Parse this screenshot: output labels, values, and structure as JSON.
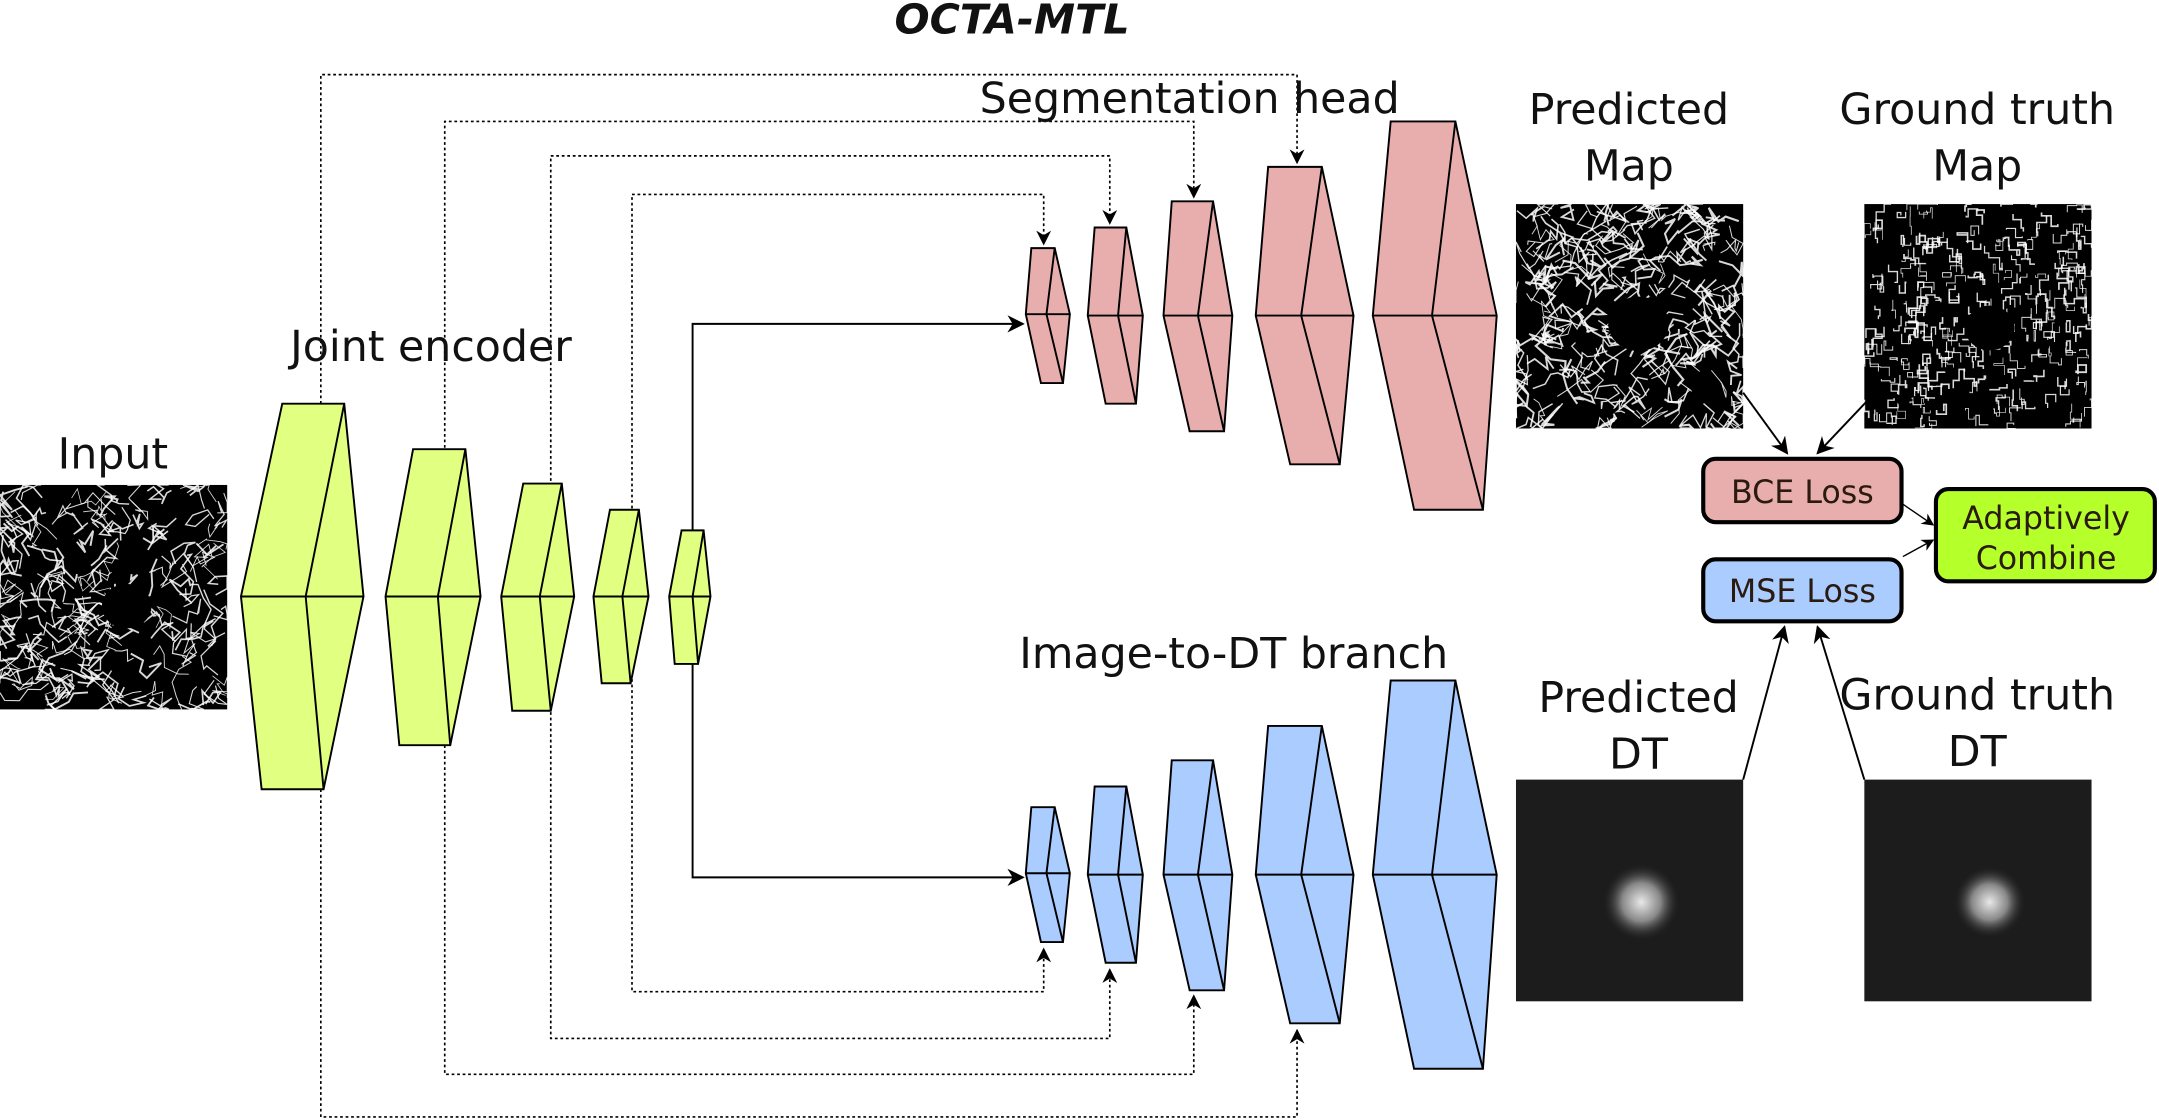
{
  "title": "OCTA-MTL",
  "labels": {
    "input": "Input",
    "joint_encoder": "Joint encoder",
    "segmentation_head": "Segmentation head",
    "dt_branch": "Image-to-DT branch",
    "predicted_map": [
      "Predicted",
      "Map"
    ],
    "ground_truth_map": [
      "Ground truth",
      "Map"
    ],
    "predicted_dt": [
      "Predicted",
      "DT"
    ],
    "ground_truth_dt": [
      "Ground truth",
      "DT"
    ]
  },
  "boxes": {
    "bce": "BCE Loss",
    "mse": "MSE Loss",
    "combine": [
      "Adaptively",
      "Combine"
    ]
  },
  "colors": {
    "encoder": "#e1ff80",
    "segmentation": "#e8aeae",
    "dt": "#aaccff",
    "combine": "#b5ff2b"
  }
}
